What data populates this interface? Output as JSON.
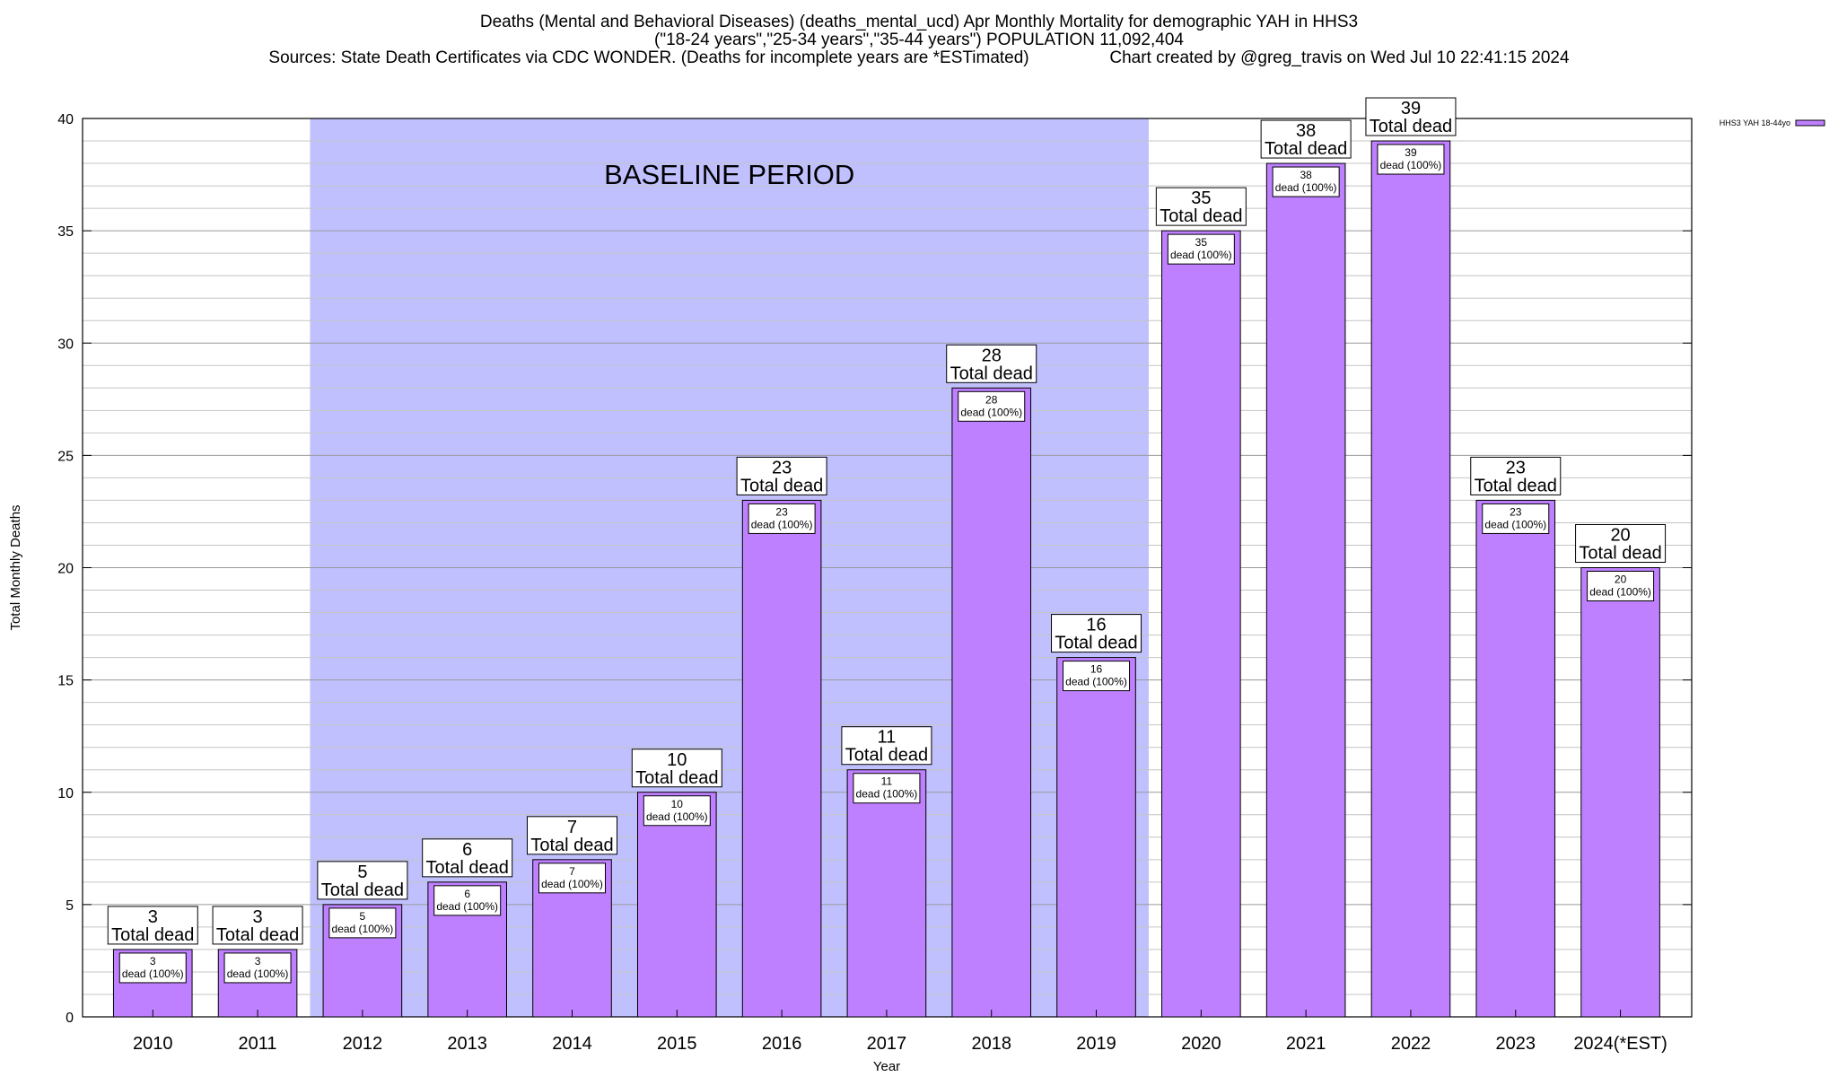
{
  "titles": {
    "line1": "Deaths (Mental and Behavioral Diseases) (deaths_mental_ucd) Apr Monthly Mortality for demographic YAH in HHS3",
    "line2": "(\"18-24 years\",\"25-34 years\",\"35-44 years\") POPULATION 11,092,404",
    "line3": "Sources: State Death Certificates via CDC WONDER. (Deaths for incomplete years are *ESTimated)                 Chart created by @greg_travis on Wed Jul 10 22:41:15 2024"
  },
  "chart_data": {
    "type": "bar",
    "xlabel": "Year",
    "ylabel": "Total Monthly Deaths",
    "ylim": [
      0,
      40
    ],
    "yticks": [
      0,
      5,
      10,
      15,
      20,
      25,
      30,
      35,
      40
    ],
    "grid": true,
    "categories": [
      "2010",
      "2011",
      "2012",
      "2013",
      "2014",
      "2015",
      "2016",
      "2017",
      "2018",
      "2019",
      "2020",
      "2021",
      "2022",
      "2023",
      "2024(*EST)"
    ],
    "series": [
      {
        "name": "HHS3 YAH 18-44yo",
        "color": "#bf80ff",
        "values": [
          3,
          3,
          5,
          6,
          7,
          10,
          23,
          11,
          28,
          16,
          35,
          38,
          39,
          23,
          20
        ]
      }
    ],
    "total_label": "Total dead",
    "inner_label": "dead (100%)",
    "legend_position": "top-right",
    "baseline_period": {
      "label": "BASELINE PERIOD",
      "from": "2012",
      "to": "2019",
      "color": "#c0c0ff"
    }
  }
}
